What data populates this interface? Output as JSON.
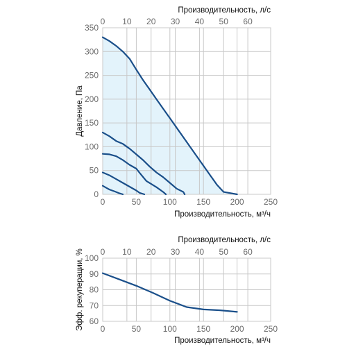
{
  "colors": {
    "line": "#1a4f8a",
    "fill": "#e3f3fb",
    "grid": "#c8c8c8",
    "tick_text": "#6a6a6a"
  },
  "chart_data": [
    {
      "type": "line",
      "xlabel": "Производительность, м³/ч",
      "x2label": "Производительность, л/с",
      "ylabel": "Давление, Па",
      "xlim": [
        0,
        250
      ],
      "x2lim": [
        0,
        69.444
      ],
      "ylim": [
        0,
        350
      ],
      "xticks": [
        "0",
        "50",
        "100",
        "150",
        "200",
        "250"
      ],
      "x2ticks": [
        "0",
        "10",
        "20",
        "30",
        "40",
        "50",
        "60"
      ],
      "yticks": [
        "0",
        "50",
        "100",
        "150",
        "200",
        "250",
        "300",
        "350"
      ],
      "grid": true,
      "shaded_region": "under max curve",
      "series": [
        {
          "values": [
            [
              0,
              330
            ],
            [
              10,
              322
            ],
            [
              20,
              312
            ],
            [
              30,
              300
            ],
            [
              40,
              285
            ],
            [
              50,
              262
            ],
            [
              60,
              240
            ],
            [
              70,
              220
            ],
            [
              80,
              200
            ],
            [
              90,
              180
            ],
            [
              100,
              160
            ],
            [
              110,
              140
            ],
            [
              120,
              120
            ],
            [
              130,
              100
            ],
            [
              140,
              80
            ],
            [
              150,
              60
            ],
            [
              160,
              40
            ],
            [
              170,
              20
            ],
            [
              180,
              5
            ],
            [
              200,
              0
            ]
          ]
        },
        {
          "values": [
            [
              0,
              130
            ],
            [
              10,
              122
            ],
            [
              20,
              112
            ],
            [
              30,
              106
            ],
            [
              40,
              96
            ],
            [
              50,
              84
            ],
            [
              60,
              72
            ],
            [
              70,
              58
            ],
            [
              80,
              46
            ],
            [
              90,
              36
            ],
            [
              100,
              24
            ],
            [
              110,
              12
            ],
            [
              120,
              5
            ],
            [
              122,
              0
            ]
          ]
        },
        {
          "values": [
            [
              0,
              85
            ],
            [
              10,
              84
            ],
            [
              20,
              80
            ],
            [
              30,
              72
            ],
            [
              40,
              62
            ],
            [
              50,
              54
            ],
            [
              55,
              45
            ],
            [
              65,
              28
            ],
            [
              80,
              15
            ],
            [
              90,
              5
            ],
            [
              94,
              0
            ]
          ]
        },
        {
          "values": [
            [
              0,
              46
            ],
            [
              10,
              40
            ],
            [
              20,
              32
            ],
            [
              30,
              24
            ],
            [
              40,
              16
            ],
            [
              50,
              8
            ],
            [
              55,
              3
            ],
            [
              62,
              0
            ]
          ]
        },
        {
          "values": [
            [
              0,
              18
            ],
            [
              5,
              14
            ],
            [
              10,
              10
            ],
            [
              18,
              6
            ],
            [
              25,
              2
            ],
            [
              30,
              0
            ]
          ]
        }
      ]
    },
    {
      "type": "line",
      "xlabel": "Производительность, м³/ч",
      "x2label": "Производительность, л/с",
      "ylabel": "Эфф. рекуперации, %",
      "xlim": [
        0,
        250
      ],
      "x2lim": [
        0,
        69.444
      ],
      "ylim": [
        60,
        100
      ],
      "xticks": [
        "0",
        "50",
        "100",
        "150",
        "200",
        "250"
      ],
      "x2ticks": [
        "0",
        "10",
        "20",
        "30",
        "40",
        "50",
        "60"
      ],
      "yticks": [
        "60",
        "70",
        "80",
        "90",
        "100"
      ],
      "grid": true,
      "series": [
        {
          "values": [
            [
              0,
              90.5
            ],
            [
              25,
              86.5
            ],
            [
              50,
              82.5
            ],
            [
              75,
              78
            ],
            [
              100,
              73
            ],
            [
              125,
              69
            ],
            [
              150,
              67.5
            ],
            [
              175,
              67
            ],
            [
              200,
              66
            ]
          ]
        }
      ]
    }
  ]
}
